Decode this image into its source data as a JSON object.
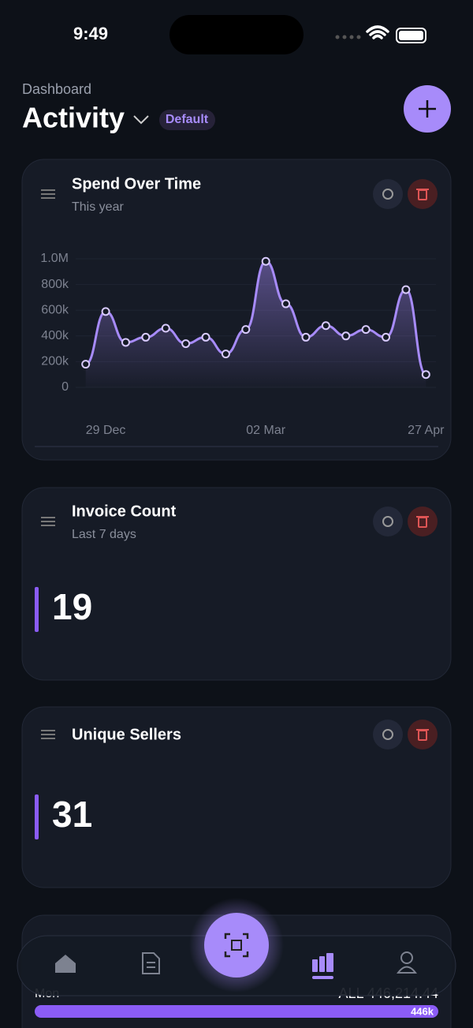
{
  "status": {
    "time": "9:49"
  },
  "header": {
    "subtitle": "Dashboard",
    "title": "Activity",
    "badge": "Default"
  },
  "cards": [
    {
      "title": "Spend Over Time",
      "subtitle": "This year"
    },
    {
      "title": "Invoice Count",
      "subtitle": "Last 7 days",
      "value": 19
    },
    {
      "title": "Unique Sellers",
      "value": 31
    },
    {
      "row_label": "Mon",
      "row_total": "ALL 446,214.44",
      "bar_label": "446k"
    }
  ],
  "chart_data": {
    "type": "line",
    "color": "#a78bfa",
    "categories": [
      null,
      "29 Dec",
      null,
      null,
      null,
      null,
      null,
      null,
      null,
      "02 Mar",
      null,
      null,
      null,
      null,
      null,
      null,
      null,
      "27 Apr"
    ],
    "values": [
      180000,
      590000,
      350000,
      390000,
      460000,
      340000,
      390000,
      260000,
      450000,
      980000,
      650000,
      390000,
      480000,
      400000,
      450000,
      390000,
      760000,
      100000
    ],
    "ylim": [
      0,
      1000000
    ],
    "yticks": [
      {
        "value": 0,
        "label": "0"
      },
      {
        "value": 200000,
        "label": "200k"
      },
      {
        "value": 400000,
        "label": "400k"
      },
      {
        "value": 600000,
        "label": "600k"
      },
      {
        "value": 800000,
        "label": "800k"
      },
      {
        "value": 1000000,
        "label": "1.0M"
      }
    ],
    "grid": true
  }
}
